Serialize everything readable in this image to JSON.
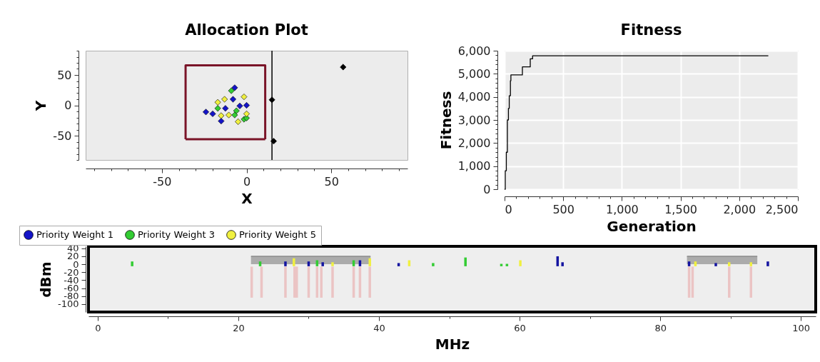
{
  "chart_data": [
    {
      "type": "scatter",
      "title": "Allocation Plot",
      "xlabel": "X",
      "ylabel": "Y",
      "xlim": [
        -95,
        95
      ],
      "ylim": [
        -90,
        90
      ],
      "xticks": [
        {
          "value": -90,
          "label": null
        },
        {
          "value": -80,
          "label": null
        },
        {
          "value": -70,
          "label": null
        },
        {
          "value": -60,
          "label": null
        },
        -50,
        {
          "value": -40,
          "label": null
        },
        {
          "value": -30,
          "label": null
        },
        {
          "value": -20,
          "label": null
        },
        {
          "value": -10,
          "label": null
        },
        0,
        {
          "value": 10,
          "label": null
        },
        {
          "value": 20,
          "label": null
        },
        {
          "value": 30,
          "label": null
        },
        {
          "value": 40,
          "label": null
        },
        50,
        {
          "value": 60,
          "label": null
        },
        {
          "value": 70,
          "label": null
        },
        {
          "value": 80,
          "label": null
        },
        {
          "value": 90,
          "label": null
        }
      ],
      "yticks": [
        {
          "value": -90,
          "label": null
        },
        {
          "value": -80,
          "label": null
        },
        {
          "value": -70,
          "label": null
        },
        {
          "value": -60,
          "label": null
        },
        -50,
        {
          "value": -40,
          "label": null
        },
        {
          "value": -30,
          "label": null
        },
        {
          "value": -20,
          "label": null
        },
        {
          "value": -10,
          "label": null
        },
        0,
        {
          "value": 10,
          "label": null
        },
        {
          "value": 20,
          "label": null
        },
        {
          "value": 30,
          "label": null
        },
        {
          "value": 40,
          "label": null
        },
        50,
        {
          "value": 60,
          "label": null
        },
        {
          "value": 70,
          "label": null
        },
        {
          "value": 80,
          "label": null
        },
        {
          "value": 90,
          "label": null
        }
      ],
      "marker": "diamond",
      "legend": "bottom",
      "ref_lines": [
        {
          "axis": "x",
          "value": 15,
          "color": "#000000"
        }
      ],
      "series": [
        {
          "type": "line",
          "marker": "none",
          "color": "#7a1428",
          "x": [
            -36,
            -36,
            11,
            11
          ],
          "values": [
            -56,
            66,
            66,
            -56
          ]
        },
        {
          "type": "line",
          "marker": "none",
          "color": "#7a1428",
          "x": [
            -36,
            11
          ],
          "values": [
            -56,
            -56
          ]
        },
        {
          "name": "Priority Weight 1",
          "color": "#1414c8",
          "x": [
            -7,
            -24,
            -20,
            -15,
            -12.5,
            -8,
            -4,
            0
          ],
          "values": [
            29,
            -11,
            -14,
            -26,
            -5,
            10,
            -1,
            0
          ]
        },
        {
          "name": "Priority Weight 3",
          "color": "#33cc33",
          "x": [
            -9,
            -17,
            -6,
            -7,
            -1.5,
            0
          ],
          "values": [
            24,
            -5,
            -9,
            -16,
            -23,
            -21
          ]
        },
        {
          "name": "Priority Weight 5",
          "color": "#f0f040",
          "x": [
            -17,
            -13,
            -1.5,
            -15,
            -10.5,
            -5,
            0
          ],
          "values": [
            5,
            10,
            14,
            -17,
            -16,
            -27,
            -14
          ]
        },
        {
          "color": "#000000",
          "x": [
            57,
            15,
            16
          ],
          "values": [
            63,
            9,
            -59
          ]
        }
      ]
    },
    {
      "type": "step",
      "title": "Fitness",
      "xlabel": "Generation",
      "ylabel": "Fitness",
      "xlim": [
        0,
        2500
      ],
      "ylim": [
        0,
        6000
      ],
      "grid": true,
      "xticks": [
        0,
        {
          "value": 100,
          "label": null
        },
        {
          "value": 200,
          "label": null
        },
        {
          "value": 300,
          "label": null
        },
        {
          "value": 400,
          "label": null
        },
        500,
        {
          "value": 600,
          "label": null
        },
        {
          "value": 700,
          "label": null
        },
        {
          "value": 800,
          "label": null
        },
        {
          "value": 900,
          "label": null
        },
        {
          "value": 1000,
          "label": "1,000"
        },
        {
          "value": 1100,
          "label": null
        },
        {
          "value": 1200,
          "label": null
        },
        {
          "value": 1300,
          "label": null
        },
        {
          "value": 1400,
          "label": null
        },
        {
          "value": 1500,
          "label": "1,500"
        },
        {
          "value": 1600,
          "label": null
        },
        {
          "value": 1700,
          "label": null
        },
        {
          "value": 1800,
          "label": null
        },
        {
          "value": 1900,
          "label": null
        },
        {
          "value": 2000,
          "label": "2,000"
        },
        {
          "value": 2100,
          "label": null
        },
        {
          "value": 2200,
          "label": null
        },
        {
          "value": 2300,
          "label": null
        },
        {
          "value": 2400,
          "label": null
        },
        {
          "value": 2500,
          "label": "2,500"
        }
      ],
      "yticks": [
        0,
        {
          "value": 200,
          "label": null
        },
        {
          "value": 400,
          "label": null
        },
        {
          "value": 600,
          "label": null
        },
        {
          "value": 800,
          "label": null
        },
        {
          "value": 1000,
          "label": "1,000"
        },
        {
          "value": 1200,
          "label": null
        },
        {
          "value": 1400,
          "label": null
        },
        {
          "value": 1600,
          "label": null
        },
        {
          "value": 1800,
          "label": null
        },
        {
          "value": 2000,
          "label": "2,000"
        },
        {
          "value": 2200,
          "label": null
        },
        {
          "value": 2400,
          "label": null
        },
        {
          "value": 2600,
          "label": null
        },
        {
          "value": 2800,
          "label": null
        },
        {
          "value": 3000,
          "label": "3,000"
        },
        {
          "value": 3200,
          "label": null
        },
        {
          "value": 3400,
          "label": null
        },
        {
          "value": 3600,
          "label": null
        },
        {
          "value": 3800,
          "label": null
        },
        {
          "value": 4000,
          "label": "4,000"
        },
        {
          "value": 4200,
          "label": null
        },
        {
          "value": 4400,
          "label": null
        },
        {
          "value": 4600,
          "label": null
        },
        {
          "value": 4800,
          "label": null
        },
        {
          "value": 5000,
          "label": "5,000"
        },
        {
          "value": 5200,
          "label": null
        },
        {
          "value": 5400,
          "label": null
        },
        {
          "value": 5600,
          "label": null
        },
        {
          "value": 5800,
          "label": null
        },
        {
          "value": 6000,
          "label": "6,000"
        }
      ],
      "series": [
        {
          "color": "#000000",
          "x": [
            0,
            6,
            15,
            24,
            33,
            40,
            50,
            54,
            152,
            219,
            239,
            2248
          ],
          "values": [
            0,
            800,
            1600,
            3000,
            3500,
            4050,
            4700,
            4950,
            5300,
            5650,
            5780,
            5780
          ]
        }
      ]
    },
    {
      "type": "bar",
      "xlabel": "MHz",
      "ylabel": "dBm",
      "xlim": [
        -0.8,
        101.6
      ],
      "ylim": [
        -120,
        45
      ],
      "xticks": [
        0,
        {
          "value": 10,
          "label": null
        },
        20,
        {
          "value": 30,
          "label": null
        },
        40,
        {
          "value": 50,
          "label": null
        },
        60,
        {
          "value": 70,
          "label": null
        },
        80,
        {
          "value": 90,
          "label": null
        },
        100
      ],
      "yticks": [
        40,
        20,
        0,
        -20,
        -40,
        -60,
        -80,
        -100
      ],
      "series": [
        {
          "type": "area",
          "color": "#a6a6a6",
          "x": [
            21.8,
            38.8
          ],
          "values": [
            20,
            20
          ]
        },
        {
          "type": "area",
          "color": "#a6a6a6",
          "x": [
            83.8,
            93.8
          ],
          "values": [
            20,
            20
          ]
        },
        {
          "color": "#ebc4c4",
          "x": [
            21.9,
            23.3,
            26.7,
            28.0,
            28.3,
            30.0,
            31.2,
            31.8,
            33.4,
            36.4,
            37.3,
            38.7,
            84.1,
            84.6,
            89.8,
            92.9
          ],
          "base": [
            -84,
            -84,
            -84,
            -84,
            -84,
            -84,
            -84,
            -84,
            -84,
            -84,
            -84,
            -84,
            -84,
            -84,
            -84,
            -84
          ],
          "values": [
            78,
            78,
            78,
            78,
            78,
            78,
            78,
            78,
            78,
            78,
            78,
            78,
            78,
            78,
            78,
            78
          ]
        },
        {
          "color": "#1414a0",
          "x": [
            26.7,
            30.0,
            32.0,
            37.3,
            42.8,
            65.4,
            66.1,
            84.1,
            87.9,
            95.3
          ],
          "base": [
            -5,
            -5,
            -5,
            -5,
            -5,
            -5,
            -5,
            -5,
            -5,
            -5
          ],
          "values": [
            12,
            12,
            10,
            15,
            8,
            25,
            10,
            12,
            8,
            12
          ]
        },
        {
          "color": "#33cc33",
          "x": [
            4.9,
            23.1,
            31.2,
            36.4,
            47.7,
            52.3,
            57.4,
            58.2
          ],
          "base": [
            -5,
            -5,
            -5,
            -5,
            -5,
            -5,
            -5,
            -5
          ],
          "values": [
            12,
            12,
            15,
            15,
            8,
            22,
            6,
            6
          ]
        },
        {
          "color": "#f0f040",
          "x": [
            27.9,
            33.4,
            38.7,
            44.3,
            60.1,
            85.0,
            89.8,
            92.9
          ],
          "base": [
            -5,
            -5,
            -5,
            -5,
            -5,
            -5,
            -5,
            -5
          ],
          "values": [
            20,
            10,
            20,
            15,
            15,
            12,
            10,
            10
          ]
        }
      ]
    }
  ]
}
